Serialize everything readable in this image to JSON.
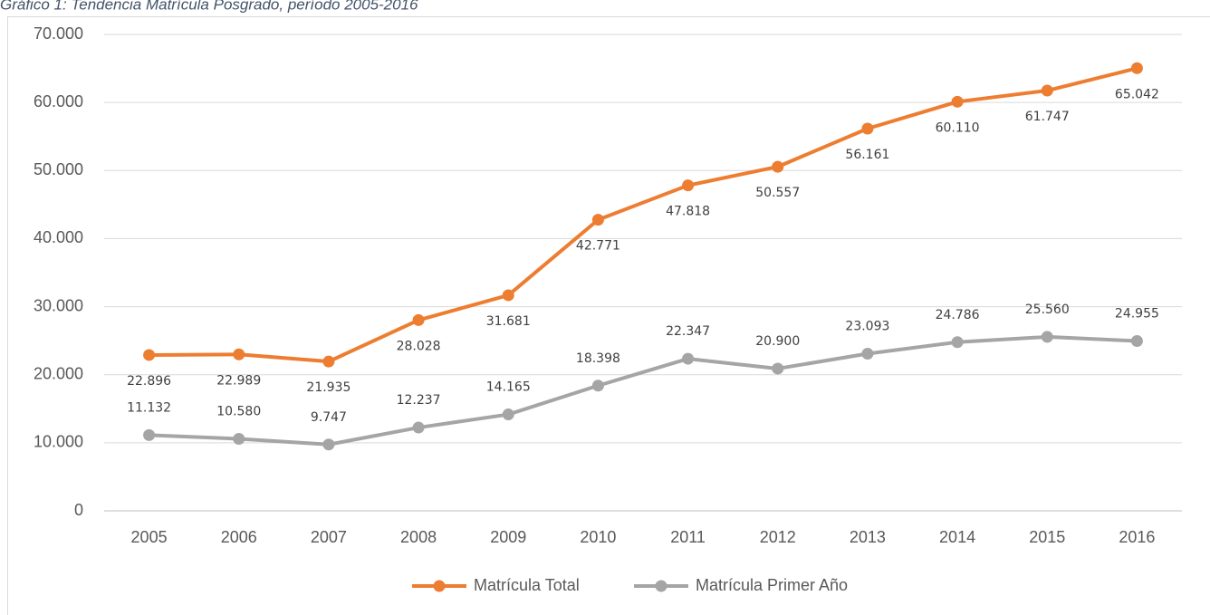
{
  "chart_data": {
    "type": "line",
    "title": "Gráfico 1: Tendencia Matrícula Posgrado, período 2005-2016",
    "categories": [
      "2005",
      "2006",
      "2007",
      "2008",
      "2009",
      "2010",
      "2011",
      "2012",
      "2013",
      "2014",
      "2015",
      "2016"
    ],
    "series": [
      {
        "name": "Matrícula Total",
        "color": "#ed7d31",
        "values": [
          22896,
          22989,
          21935,
          28028,
          31681,
          42771,
          47818,
          50557,
          56161,
          60110,
          61747,
          65042
        ],
        "value_labels": [
          "22.896",
          "22.989",
          "21.935",
          "28.028",
          "31.681",
          "42.771",
          "47.818",
          "50.557",
          "56.161",
          "60.110",
          "61.747",
          "65.042"
        ]
      },
      {
        "name": "Matrícula Primer Año",
        "color": "#a5a5a5",
        "values": [
          11132,
          10580,
          9747,
          12237,
          14165,
          18398,
          22347,
          20900,
          23093,
          24786,
          25560,
          24955
        ],
        "value_labels": [
          "11.132",
          "10.580",
          "9.747",
          "12.237",
          "14.165",
          "18.398",
          "22.347",
          "20.900",
          "23.093",
          "24.786",
          "25.560",
          "24.955"
        ]
      }
    ],
    "ylim": [
      0,
      70000
    ],
    "yticks": [
      0,
      {
        "value": 10000,
        "label": "10.000"
      },
      {
        "value": 20000,
        "label": "20.000"
      },
      {
        "value": 30000,
        "label": "30.000"
      },
      {
        "value": 40000,
        "label": "40.000"
      },
      {
        "value": 50000,
        "label": "50.000"
      },
      {
        "value": 60000,
        "label": "60.000"
      },
      {
        "value": 70000,
        "label": "70.000"
      }
    ],
    "grid": true,
    "legend": "bottom"
  }
}
